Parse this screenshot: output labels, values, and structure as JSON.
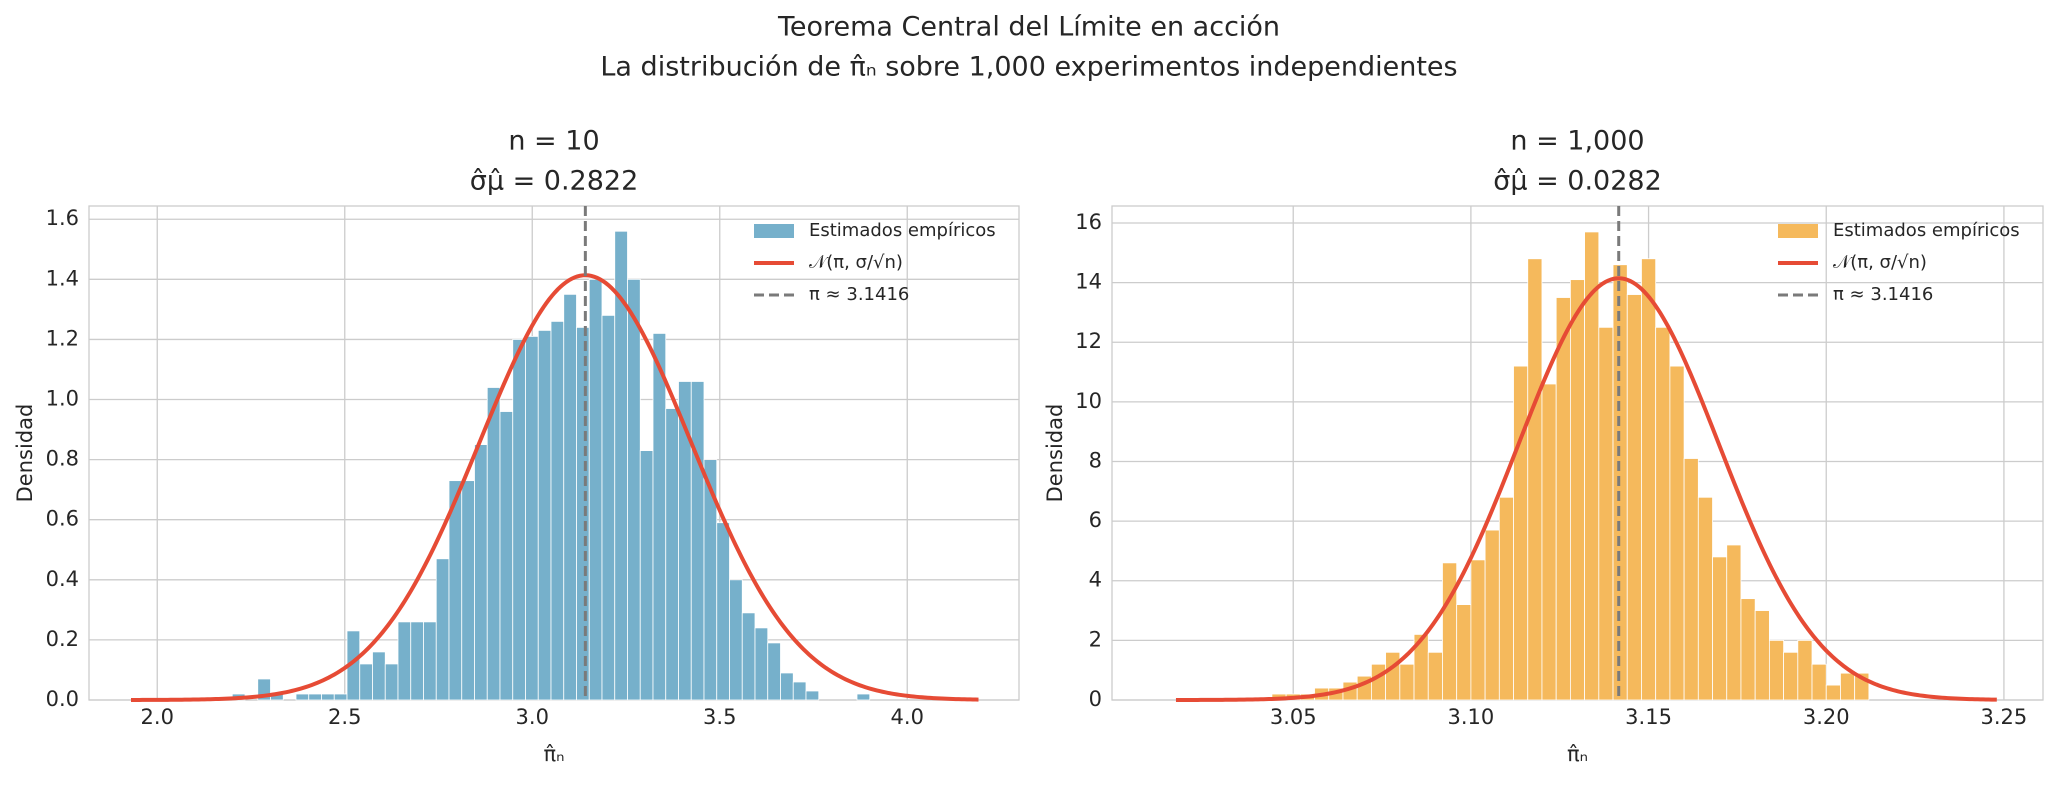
{
  "title": [
    "Teorema Central del Límite en acción",
    "La distribución de π̂ₙ sobre 1,000 experimentos independientes"
  ],
  "chart_data": [
    {
      "type": "histogram",
      "title": [
        "n = 10",
        "σ̂μ̂ = 0.2822"
      ],
      "xlabel": "π̂ₙ",
      "ylabel": "Densidad",
      "bins": [
        2.2,
        2.234,
        2.268,
        2.302,
        2.336,
        2.37,
        2.404,
        2.438,
        2.472,
        2.506,
        2.54,
        2.574,
        2.608,
        2.642,
        2.676,
        2.71,
        2.744,
        2.778,
        2.812,
        2.846,
        2.88,
        2.914,
        2.948,
        2.982,
        3.016,
        3.05,
        3.084,
        3.118,
        3.152,
        3.186,
        3.22,
        3.254,
        3.288,
        3.322,
        3.356,
        3.39,
        3.424,
        3.458,
        3.492,
        3.526,
        3.56,
        3.594,
        3.628,
        3.662,
        3.696,
        3.73,
        3.764,
        3.798,
        3.832,
        3.866,
        3.9
      ],
      "values": [
        0.02,
        0,
        0.07,
        0.02,
        0,
        0.02,
        0.02,
        0.02,
        0.02,
        0.23,
        0.12,
        0.16,
        0.12,
        0.26,
        0.26,
        0.26,
        0.47,
        0.73,
        0.73,
        0.85,
        1.04,
        0.96,
        1.2,
        1.21,
        1.23,
        1.26,
        1.35,
        1.24,
        1.4,
        1.28,
        1.56,
        1.4,
        0.83,
        1.22,
        0.97,
        1.06,
        1.06,
        0.8,
        0.59,
        0.4,
        0.29,
        0.24,
        0.19,
        0.09,
        0.06,
        0.03,
        0,
        0,
        0,
        0.02
      ],
      "color": "#76b0cb",
      "curve": {
        "mean": 3.1416,
        "sd": 0.2822,
        "xmin": 1.93,
        "xmax": 4.19,
        "color": "#e64b35"
      },
      "vline": {
        "value": 3.1416,
        "color": "#7a7a7a"
      },
      "legend": [
        "Estimados empíricos",
        "𝒩(π,  σ/√n)",
        "π ≈ 3.1416"
      ],
      "legend_loc": "upper right",
      "xlim": [
        1.818,
        4.298
      ],
      "ylim": [
        0,
        1.644
      ],
      "xticks": [
        {
          "value": 2,
          "label": "2.0"
        },
        2.5,
        {
          "value": 3,
          "label": "3.0"
        },
        3.5,
        {
          "value": 4,
          "label": "4.0"
        }
      ],
      "yticks": [
        {
          "value": 0,
          "label": "0.0"
        },
        0.2,
        0.4,
        0.6,
        0.8,
        {
          "value": 1,
          "label": "1.0"
        },
        1.2,
        1.4,
        1.6
      ],
      "grid": true
    },
    {
      "type": "histogram",
      "title": [
        "n = 1,000",
        "σ̂μ̂ = 0.0282"
      ],
      "xlabel": "π̂ₙ",
      "ylabel": "Densidad",
      "bins": [
        3.044,
        3.048,
        3.052,
        3.056,
        3.06,
        3.064,
        3.068,
        3.072,
        3.076,
        3.08,
        3.084,
        3.088,
        3.092,
        3.096,
        3.1,
        3.104,
        3.108,
        3.112,
        3.116,
        3.12,
        3.124,
        3.128,
        3.132,
        3.136,
        3.14,
        3.144,
        3.148,
        3.152,
        3.156,
        3.16,
        3.164,
        3.168,
        3.172,
        3.176,
        3.18,
        3.184,
        3.188,
        3.192,
        3.196,
        3.2,
        3.204,
        3.208,
        3.212
      ],
      "values": [
        0.2,
        0.2,
        0.2,
        0.4,
        0.4,
        0.6,
        0.8,
        1.2,
        1.6,
        1.2,
        2.2,
        1.6,
        4.6,
        3.2,
        4.7,
        5.7,
        6.8,
        11.2,
        14.8,
        10.6,
        13.5,
        14.1,
        15.7,
        12.5,
        14.6,
        13.6,
        14.8,
        12.5,
        11.2,
        8.1,
        6.8,
        4.8,
        5.2,
        3.4,
        3.0,
        2.0,
        1.6,
        2.0,
        1.2,
        0.5,
        0.9,
        0.9
      ],
      "color": "#f5b95c",
      "curve": {
        "mean": 3.1416,
        "sd": 0.0282,
        "xmin": 3.017,
        "xmax": 3.248,
        "color": "#e64b35"
      },
      "vline": {
        "value": 3.1416,
        "color": "#7a7a7a"
      },
      "legend": [
        "Estimados empíricos",
        "𝒩(π,  σ/√n)",
        "π ≈ 3.1416"
      ],
      "legend_loc": "upper right",
      "xlim": [
        2.999,
        3.261
      ],
      "ylim": [
        0,
        16.57
      ],
      "xticks": [
        3.05,
        {
          "value": 3.1,
          "label": "3.10"
        },
        3.15,
        {
          "value": 3.2,
          "label": "3.20"
        },
        3.25
      ],
      "yticks": [
        0,
        2,
        4,
        6,
        8,
        10,
        12,
        14,
        16
      ],
      "grid": true
    }
  ]
}
